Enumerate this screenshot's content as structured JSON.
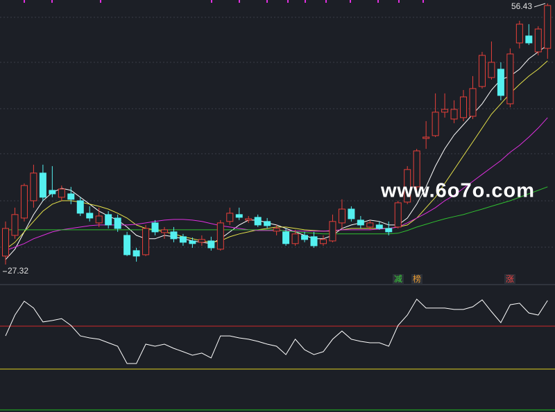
{
  "chart_data": [
    {
      "type": "candlestick",
      "up_color": "#e8403a",
      "down_color": "#54f0f0",
      "ylim": [
        27.32,
        56.43
      ],
      "high_label": 56.43,
      "low_label": 27.32,
      "ohlc": [
        [
          28.26,
          32.12,
          27.32,
          31.34
        ],
        [
          30.57,
          33.66,
          30.19,
          32.89
        ],
        [
          32.5,
          36.36,
          32.12,
          36.13
        ],
        [
          34.43,
          38.45,
          33.66,
          37.52
        ],
        [
          37.52,
          38.45,
          34.43,
          34.82
        ],
        [
          35.59,
          38.29,
          34.82,
          35.2
        ],
        [
          34.82,
          36.13,
          34.43,
          35.74
        ],
        [
          35.2,
          35.98,
          34.05,
          34.59
        ],
        [
          34.43,
          34.82,
          32.73,
          33.04
        ],
        [
          33.04,
          33.81,
          32.12,
          32.5
        ],
        [
          31.96,
          33.66,
          31.5,
          32.73
        ],
        [
          32.89,
          33.27,
          31.34,
          31.73
        ],
        [
          32.5,
          32.89,
          30.96,
          31.34
        ],
        [
          30.57,
          30.96,
          28.26,
          28.41
        ],
        [
          28.87,
          29.18,
          27.64,
          28.26
        ],
        [
          28.41,
          31.73,
          28.26,
          31.34
        ],
        [
          31.96,
          32.27,
          30.57,
          30.96
        ],
        [
          30.88,
          31.5,
          30.19,
          31.19
        ],
        [
          30.96,
          31.5,
          29.8,
          30.19
        ],
        [
          30.42,
          30.73,
          29.41,
          29.8
        ],
        [
          29.95,
          30.34,
          29.18,
          29.65
        ],
        [
          29.8,
          30.57,
          29.41,
          30.11
        ],
        [
          29.95,
          30.42,
          28.87,
          29.18
        ],
        [
          29.03,
          32.27,
          28.87,
          31.96
        ],
        [
          32.12,
          33.66,
          31.73,
          33.04
        ],
        [
          32.89,
          33.66,
          32.27,
          32.58
        ],
        [
          32.27,
          32.73,
          31.96,
          32.42
        ],
        [
          32.58,
          32.89,
          31.5,
          31.73
        ],
        [
          32.12,
          32.5,
          31.34,
          31.65
        ],
        [
          31.04,
          31.73,
          30.57,
          31.34
        ],
        [
          30.96,
          31.34,
          29.41,
          29.65
        ],
        [
          29.65,
          31.19,
          29.41,
          30.73
        ],
        [
          30.57,
          30.96,
          29.8,
          30.11
        ],
        [
          30.42,
          30.96,
          29.18,
          29.41
        ],
        [
          29.65,
          30.57,
          29.41,
          30.11
        ],
        [
          29.95,
          32.89,
          29.8,
          32.12
        ],
        [
          31.96,
          34.59,
          31.34,
          33.5
        ],
        [
          33.5,
          33.81,
          32.12,
          32.42
        ],
        [
          32.27,
          32.73,
          31.34,
          31.73
        ],
        [
          31.5,
          32.27,
          31.19,
          31.96
        ],
        [
          31.73,
          32.12,
          31.19,
          31.34
        ],
        [
          31.34,
          32.12,
          30.57,
          30.96
        ],
        [
          31.5,
          34.43,
          31.34,
          34.2
        ],
        [
          34.28,
          38.29,
          34.05,
          37.91
        ],
        [
          35.98,
          40.22,
          35.59,
          39.99
        ],
        [
          41.38,
          43.31,
          40.22,
          41.53
        ],
        [
          41.69,
          46.4,
          41.53,
          44.31
        ],
        [
          44.31,
          46.4,
          43.7,
          44.62
        ],
        [
          43.54,
          45.63,
          43.08,
          44.62
        ],
        [
          43.7,
          46.78,
          43.31,
          46.01
        ],
        [
          43.85,
          48.33,
          43.54,
          46.94
        ],
        [
          47.17,
          51.03,
          46.94,
          50.64
        ],
        [
          48.17,
          52.19,
          47.94,
          49.87
        ],
        [
          49.1,
          49.87,
          45.63,
          46.17
        ],
        [
          45.24,
          51.42,
          44.85,
          50.8
        ],
        [
          52.03,
          54.5,
          51.42,
          54.12
        ],
        [
          52.81,
          54.12,
          51.8,
          52.03
        ],
        [
          51.03,
          53.89,
          50.64,
          53.58
        ],
        [
          51.42,
          56.43,
          50.26,
          56.2
        ]
      ],
      "series": [
        {
          "color": "#ffffff",
          "values": [
            27.87,
            29.03,
            30.96,
            32.89,
            34.43,
            35.36,
            35.82,
            35.59,
            34.82,
            34.05,
            33.27,
            32.73,
            32.27,
            31.5,
            30.57,
            30.19,
            30.19,
            30.57,
            30.42,
            30.19,
            29.95,
            29.8,
            29.65,
            30.19,
            30.96,
            31.73,
            32.27,
            32.27,
            31.96,
            31.73,
            31.34,
            30.96,
            30.57,
            30.19,
            30.19,
            30.57,
            31.34,
            31.73,
            31.96,
            32.27,
            32.12,
            31.73,
            31.73,
            32.5,
            34.05,
            35.98,
            38.29,
            40.22,
            41.77,
            42.92,
            44.08,
            45.24,
            46.78,
            47.94,
            48.33,
            49.1,
            50.26,
            51.03,
            51.8
          ]
        },
        {
          "color": "#e6e24a",
          "values": [
            29.03,
            29.8,
            30.96,
            32.12,
            33.27,
            34.05,
            34.43,
            34.43,
            34.28,
            34.05,
            33.81,
            33.5,
            33.04,
            32.5,
            31.73,
            31.34,
            31.19,
            30.96,
            30.73,
            30.42,
            30.19,
            29.95,
            29.8,
            29.95,
            30.42,
            30.73,
            30.96,
            31.19,
            31.34,
            31.5,
            31.5,
            31.34,
            31.19,
            31.11,
            31.04,
            31.04,
            31.19,
            31.34,
            31.34,
            31.34,
            31.34,
            31.34,
            31.5,
            31.73,
            32.5,
            33.66,
            34.82,
            36.36,
            37.91,
            39.45,
            40.99,
            42.54,
            44.08,
            45.24,
            46.4,
            47.4,
            48.33,
            49.1,
            50.03
          ]
        },
        {
          "color": "#e030e0",
          "values": [
            28.87,
            29.26,
            29.65,
            30.19,
            30.57,
            30.96,
            31.19,
            31.34,
            31.5,
            31.65,
            31.73,
            31.73,
            31.73,
            31.73,
            31.81,
            31.96,
            32.12,
            32.27,
            32.35,
            32.35,
            32.27,
            32.12,
            31.88,
            31.65,
            31.5,
            31.34,
            31.19,
            31.11,
            31.11,
            31.11,
            31.11,
            31.04,
            31.04,
            31.04,
            31.04,
            31.11,
            31.19,
            31.19,
            31.19,
            31.19,
            31.27,
            31.34,
            31.5,
            31.96,
            32.5,
            33.04,
            33.66,
            34.43,
            35.05,
            35.82,
            36.59,
            37.37,
            38.14,
            38.91,
            39.84,
            40.61,
            41.53,
            42.54,
            43.7
          ]
        },
        {
          "color": "#30c030",
          "values": [
            31.19,
            31.19,
            31.19,
            31.19,
            31.19,
            31.19,
            31.19,
            31.19,
            31.19,
            31.19,
            31.19,
            31.19,
            31.19,
            31.19,
            31.19,
            31.19,
            31.19,
            31.19,
            31.19,
            31.19,
            31.19,
            31.19,
            31.19,
            31.19,
            31.19,
            31.19,
            31.19,
            31.19,
            31.19,
            31.19,
            31.04,
            30.96,
            30.88,
            30.81,
            30.73,
            30.73,
            30.73,
            30.73,
            30.73,
            30.73,
            30.73,
            30.73,
            30.81,
            31.11,
            31.5,
            31.81,
            32.12,
            32.42,
            32.66,
            32.89,
            33.2,
            33.5,
            33.81,
            34.12,
            34.43,
            34.82,
            35.2,
            35.59,
            35.98
          ]
        }
      ]
    },
    {
      "type": "line",
      "color": "#ffffff",
      "ylim": [
        0,
        100
      ],
      "values": [
        59.4,
        76.1,
        87.2,
        81.7,
        70.6,
        71.7,
        73.3,
        67.8,
        59.4,
        57.8,
        56.7,
        53.9,
        51.1,
        37.2,
        37.2,
        52.8,
        51.1,
        52.8,
        49.4,
        46.7,
        43.9,
        45.6,
        41.7,
        59.4,
        59.4,
        57.8,
        56.7,
        55.0,
        52.8,
        51.1,
        44.4,
        56.7,
        48.3,
        44.4,
        46.7,
        56.7,
        63.3,
        56.7,
        55.0,
        53.9,
        53.9,
        51.1,
        67.8,
        76.1,
        88.9,
        81.7,
        81.7,
        81.7,
        80.6,
        80.6,
        82.8,
        88.3,
        78.9,
        70.0,
        84.4,
        85.6,
        77.8,
        76.1,
        87.8
      ],
      "reference_lines": [
        {
          "value": 67.2,
          "color": "#d02a2a"
        },
        {
          "value": 32.8,
          "color": "#e0d020"
        },
        {
          "value": 0,
          "color": "#22c022"
        }
      ]
    }
  ],
  "watermark": "www.6o7o.com",
  "signals": [
    "减",
    "榜",
    "涨"
  ]
}
